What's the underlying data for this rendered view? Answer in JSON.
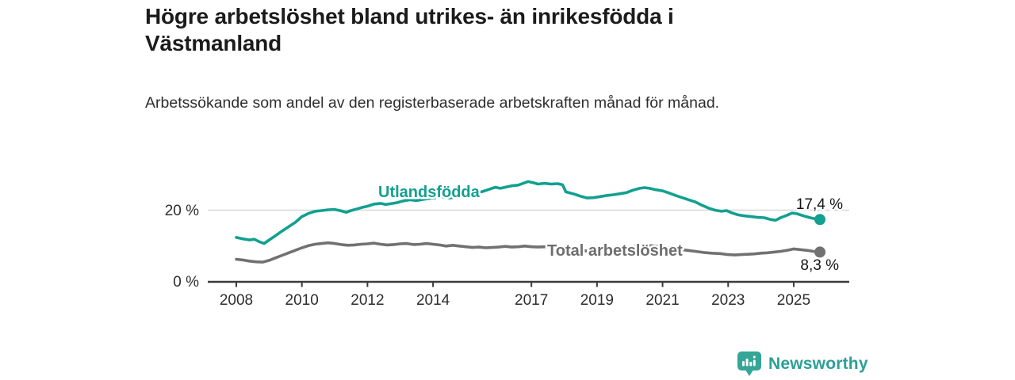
{
  "chart_data": {
    "type": "line",
    "title": "Högre arbetslöshet bland utrikes- än inrikesfödda i Västmanland",
    "subtitle": "Arbetssökande som andel av den registerbaserade arbetskraften månad för månad.",
    "xlabel": "",
    "ylabel": "",
    "unit": "%",
    "ylim": [
      0,
      30
    ],
    "x_range_years": [
      2008.0,
      2025.8
    ],
    "grid": "single light horizontal gridline at 20 %, dark baseline at 0 %",
    "legend_position": "inline labels on lines, end-value labels at right",
    "y_ticks": [
      {
        "value": 20,
        "label": "20 %"
      },
      {
        "value": 0,
        "label": "0 %"
      }
    ],
    "x_ticks": [
      {
        "year": 2008,
        "label": "2008"
      },
      {
        "year": 2010,
        "label": "2010"
      },
      {
        "year": 2012,
        "label": "2012"
      },
      {
        "year": 2014,
        "label": "2014"
      },
      {
        "year": 2017,
        "label": "2017"
      },
      {
        "year": 2019,
        "label": "2019"
      },
      {
        "year": 2021,
        "label": "2021"
      },
      {
        "year": 2023,
        "label": "2023"
      },
      {
        "year": 2025,
        "label": "2025"
      }
    ],
    "series": [
      {
        "name": "Utlandsfödda",
        "color": "#12a090",
        "end_value": 17.4,
        "end_label": "17,4 %",
        "points": [
          [
            2008.0,
            12.4
          ],
          [
            2008.2,
            12.0
          ],
          [
            2008.4,
            11.7
          ],
          [
            2008.55,
            11.9
          ],
          [
            2008.7,
            11.2
          ],
          [
            2008.85,
            10.7
          ],
          [
            2009.0,
            11.7
          ],
          [
            2009.2,
            12.9
          ],
          [
            2009.4,
            14.2
          ],
          [
            2009.6,
            15.4
          ],
          [
            2009.8,
            16.6
          ],
          [
            2010.0,
            18.2
          ],
          [
            2010.2,
            19.1
          ],
          [
            2010.4,
            19.7
          ],
          [
            2010.6,
            19.9
          ],
          [
            2010.8,
            20.1
          ],
          [
            2011.0,
            20.2
          ],
          [
            2011.2,
            19.8
          ],
          [
            2011.35,
            19.4
          ],
          [
            2011.5,
            19.9
          ],
          [
            2011.7,
            20.4
          ],
          [
            2011.85,
            20.8
          ],
          [
            2012.0,
            21.1
          ],
          [
            2012.2,
            21.7
          ],
          [
            2012.4,
            21.9
          ],
          [
            2012.55,
            21.6
          ],
          [
            2012.7,
            21.8
          ],
          [
            2012.9,
            22.1
          ],
          [
            2013.1,
            22.6
          ],
          [
            2013.3,
            22.9
          ],
          [
            2013.5,
            22.7
          ],
          [
            2013.7,
            23.0
          ],
          [
            2013.9,
            23.3
          ],
          [
            2014.1,
            23.5
          ],
          [
            2014.3,
            23.7
          ],
          [
            2014.5,
            23.4
          ],
          [
            2014.7,
            23.7
          ],
          [
            2014.9,
            24.1
          ],
          [
            2015.1,
            24.4
          ],
          [
            2015.3,
            24.7
          ],
          [
            2015.5,
            25.2
          ],
          [
            2015.7,
            25.8
          ],
          [
            2015.9,
            26.4
          ],
          [
            2016.05,
            26.1
          ],
          [
            2016.2,
            26.4
          ],
          [
            2016.4,
            26.8
          ],
          [
            2016.6,
            27.0
          ],
          [
            2016.75,
            27.5
          ],
          [
            2016.9,
            28.0
          ],
          [
            2017.05,
            27.7
          ],
          [
            2017.2,
            27.3
          ],
          [
            2017.4,
            27.5
          ],
          [
            2017.6,
            27.3
          ],
          [
            2017.8,
            27.4
          ],
          [
            2017.95,
            27.1
          ],
          [
            2018.05,
            25.1
          ],
          [
            2018.3,
            24.5
          ],
          [
            2018.5,
            23.9
          ],
          [
            2018.7,
            23.4
          ],
          [
            2018.9,
            23.5
          ],
          [
            2019.1,
            23.8
          ],
          [
            2019.3,
            24.1
          ],
          [
            2019.5,
            24.3
          ],
          [
            2019.7,
            24.6
          ],
          [
            2019.9,
            24.9
          ],
          [
            2020.1,
            25.6
          ],
          [
            2020.3,
            26.1
          ],
          [
            2020.45,
            26.3
          ],
          [
            2020.6,
            26.1
          ],
          [
            2020.8,
            25.7
          ],
          [
            2021.0,
            25.4
          ],
          [
            2021.2,
            24.8
          ],
          [
            2021.4,
            24.1
          ],
          [
            2021.6,
            23.5
          ],
          [
            2021.8,
            22.9
          ],
          [
            2022.0,
            22.3
          ],
          [
            2022.2,
            21.4
          ],
          [
            2022.4,
            20.6
          ],
          [
            2022.6,
            20.0
          ],
          [
            2022.8,
            19.7
          ],
          [
            2022.95,
            19.9
          ],
          [
            2023.1,
            19.3
          ],
          [
            2023.3,
            18.7
          ],
          [
            2023.5,
            18.4
          ],
          [
            2023.7,
            18.2
          ],
          [
            2023.9,
            18.0
          ],
          [
            2024.1,
            17.9
          ],
          [
            2024.3,
            17.4
          ],
          [
            2024.45,
            17.2
          ],
          [
            2024.6,
            17.9
          ],
          [
            2024.8,
            18.6
          ],
          [
            2024.95,
            19.2
          ],
          [
            2025.1,
            19.0
          ],
          [
            2025.3,
            18.4
          ],
          [
            2025.5,
            17.9
          ],
          [
            2025.65,
            17.6
          ],
          [
            2025.8,
            17.4
          ]
        ]
      },
      {
        "name": "Total arbetslöshet",
        "color": "#717171",
        "end_value": 8.3,
        "end_label": "8,3 %",
        "points": [
          [
            2008.0,
            6.3
          ],
          [
            2008.2,
            6.1
          ],
          [
            2008.4,
            5.8
          ],
          [
            2008.6,
            5.6
          ],
          [
            2008.8,
            5.5
          ],
          [
            2009.0,
            6.0
          ],
          [
            2009.2,
            6.7
          ],
          [
            2009.4,
            7.4
          ],
          [
            2009.6,
            8.1
          ],
          [
            2009.8,
            8.8
          ],
          [
            2010.0,
            9.5
          ],
          [
            2010.2,
            10.1
          ],
          [
            2010.4,
            10.5
          ],
          [
            2010.6,
            10.7
          ],
          [
            2010.8,
            10.9
          ],
          [
            2011.0,
            10.7
          ],
          [
            2011.2,
            10.4
          ],
          [
            2011.4,
            10.2
          ],
          [
            2011.6,
            10.3
          ],
          [
            2011.8,
            10.5
          ],
          [
            2012.0,
            10.6
          ],
          [
            2012.2,
            10.8
          ],
          [
            2012.4,
            10.5
          ],
          [
            2012.6,
            10.3
          ],
          [
            2012.8,
            10.4
          ],
          [
            2013.0,
            10.6
          ],
          [
            2013.2,
            10.7
          ],
          [
            2013.4,
            10.4
          ],
          [
            2013.6,
            10.5
          ],
          [
            2013.8,
            10.7
          ],
          [
            2014.0,
            10.5
          ],
          [
            2014.2,
            10.3
          ],
          [
            2014.4,
            10.0
          ],
          [
            2014.6,
            10.2
          ],
          [
            2014.8,
            10.0
          ],
          [
            2015.0,
            9.8
          ],
          [
            2015.2,
            9.6
          ],
          [
            2015.4,
            9.7
          ],
          [
            2015.6,
            9.5
          ],
          [
            2015.8,
            9.6
          ],
          [
            2016.0,
            9.7
          ],
          [
            2016.2,
            9.9
          ],
          [
            2016.4,
            9.7
          ],
          [
            2016.6,
            9.8
          ],
          [
            2016.8,
            10.0
          ],
          [
            2017.0,
            9.8
          ],
          [
            2017.2,
            9.7
          ],
          [
            2017.4,
            9.8
          ],
          [
            2017.6,
            9.7
          ],
          [
            2017.8,
            9.5
          ],
          [
            2018.0,
            9.1
          ],
          [
            2018.25,
            8.9
          ],
          [
            2018.5,
            8.7
          ],
          [
            2018.75,
            8.6
          ],
          [
            2019.0,
            8.7
          ],
          [
            2019.25,
            8.9
          ],
          [
            2019.5,
            9.0
          ],
          [
            2019.75,
            9.2
          ],
          [
            2020.0,
            9.6
          ],
          [
            2020.25,
            10.0
          ],
          [
            2020.5,
            10.2
          ],
          [
            2020.75,
            10.0
          ],
          [
            2021.0,
            9.7
          ],
          [
            2021.25,
            9.4
          ],
          [
            2021.5,
            9.1
          ],
          [
            2021.75,
            8.8
          ],
          [
            2022.0,
            8.5
          ],
          [
            2022.25,
            8.2
          ],
          [
            2022.5,
            8.0
          ],
          [
            2022.75,
            7.9
          ],
          [
            2023.0,
            7.6
          ],
          [
            2023.2,
            7.5
          ],
          [
            2023.4,
            7.6
          ],
          [
            2023.6,
            7.7
          ],
          [
            2023.8,
            7.8
          ],
          [
            2024.0,
            8.0
          ],
          [
            2024.2,
            8.1
          ],
          [
            2024.4,
            8.3
          ],
          [
            2024.6,
            8.5
          ],
          [
            2024.8,
            8.8
          ],
          [
            2025.0,
            9.2
          ],
          [
            2025.2,
            9.0
          ],
          [
            2025.4,
            8.8
          ],
          [
            2025.6,
            8.5
          ],
          [
            2025.8,
            8.3
          ]
        ]
      }
    ],
    "colors": {
      "teal_series": "#12a090",
      "gray_series": "#717171",
      "gridline": "#d8d8d8",
      "axis": "#3b3b3b",
      "brand_teal": "#2aa095"
    }
  },
  "footer": {
    "brand": "Newsworthy"
  }
}
